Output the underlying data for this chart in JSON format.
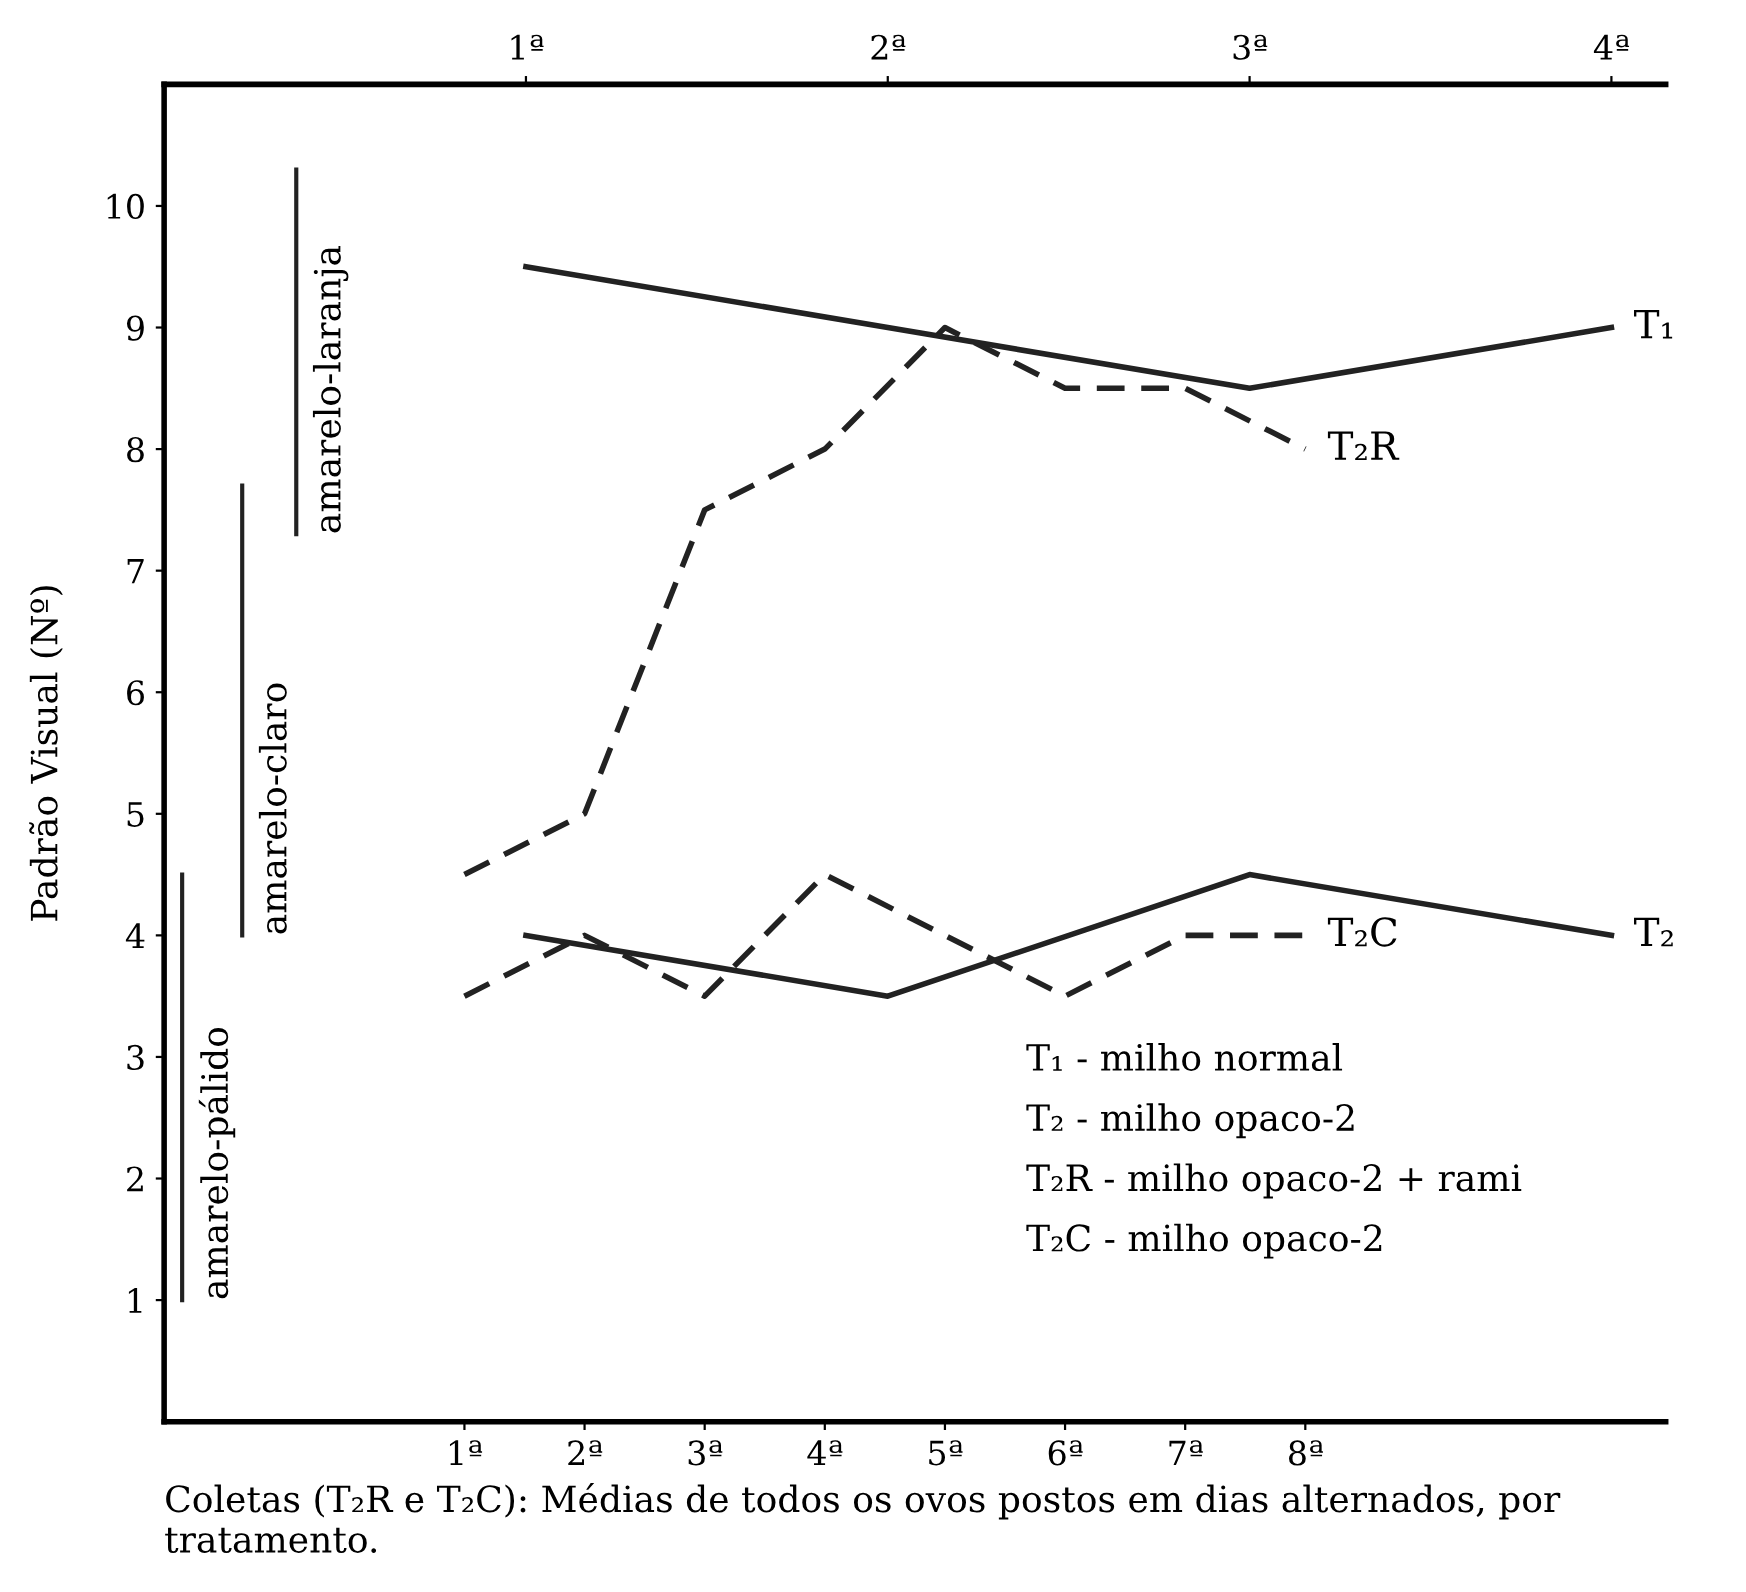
{
  "chart_data": {
    "type": "line",
    "ylabel": "Padrão Visual (Nº)",
    "xlabel": "Coletas (T₂R e T₂C): Médias de todos os ovos postos em dias alternados, por tratamento.",
    "xlim": [
      -1.5,
      11
    ],
    "xticks": [
      {
        "value": 1,
        "label": "1ª"
      },
      {
        "value": 2,
        "label": "2ª"
      },
      {
        "value": 3,
        "label": "3ª"
      },
      {
        "value": 4,
        "label": "4ª"
      },
      {
        "value": 5,
        "label": "5ª"
      },
      {
        "value": 6,
        "label": "6ª"
      },
      {
        "value": 7,
        "label": "7ª"
      },
      {
        "value": 8,
        "label": "8ª"
      }
    ],
    "x2lim": [
      0,
      4.15
    ],
    "x2ticks": [
      {
        "value": 1,
        "label": "1ª"
      },
      {
        "value": 2,
        "label": "2ª"
      },
      {
        "value": 3,
        "label": "3ª"
      },
      {
        "value": 4,
        "label": "4ª"
      }
    ],
    "ylim": [
      0,
      11
    ],
    "yticks": [
      1,
      2,
      3,
      4,
      5,
      6,
      7,
      8,
      9,
      10
    ],
    "grid": false,
    "legend": false,
    "marker": "none",
    "series": [
      {
        "name": "T₁",
        "color": "#222222",
        "axis": "x2",
        "line_style": "solid",
        "x": [
          1,
          2,
          3,
          4
        ],
        "values": [
          9.5,
          9.0,
          8.5,
          9.0
        ]
      },
      {
        "name": "T₂",
        "color": "#222222",
        "axis": "x2",
        "line_style": "solid",
        "x": [
          1,
          2,
          3,
          4
        ],
        "values": [
          4.0,
          3.5,
          4.5,
          4.0
        ]
      },
      {
        "name": "T₂R",
        "color": "#222222",
        "line_style": "dashed",
        "x": [
          1,
          2,
          3,
          4,
          5,
          6,
          7,
          8
        ],
        "values": [
          4.5,
          5.0,
          7.5,
          8.0,
          9.0,
          8.5,
          8.5,
          8.0
        ]
      },
      {
        "name": "T₂C",
        "color": "#222222",
        "line_style": "dashed",
        "x": [
          1,
          2,
          3,
          4,
          5,
          6,
          7,
          8
        ],
        "values": [
          3.5,
          4.0,
          3.5,
          4.5,
          4.0,
          3.5,
          4.0,
          4.0
        ]
      },
      {
        "name": "amarelo-pálido",
        "color": "#222222",
        "line_style": "solid",
        "x": [
          -1.35,
          -1.35
        ],
        "values": [
          1,
          4.5
        ]
      },
      {
        "name": "amarelo-claro",
        "color": "#222222",
        "line_style": "solid",
        "x": [
          -0.85,
          -0.85
        ],
        "values": [
          4,
          7.7
        ]
      },
      {
        "name": "amarelo-laranja",
        "color": "#222222",
        "line_style": "solid",
        "x": [
          -0.4,
          -0.4
        ],
        "values": [
          7.3,
          10.3
        ]
      }
    ],
    "annotations": [
      "T₁ - milho normal",
      "T₂ - milho opaco-2",
      "T₂R - milho opaco-2 + rami",
      "T₂C - milho opaco-2"
    ]
  }
}
